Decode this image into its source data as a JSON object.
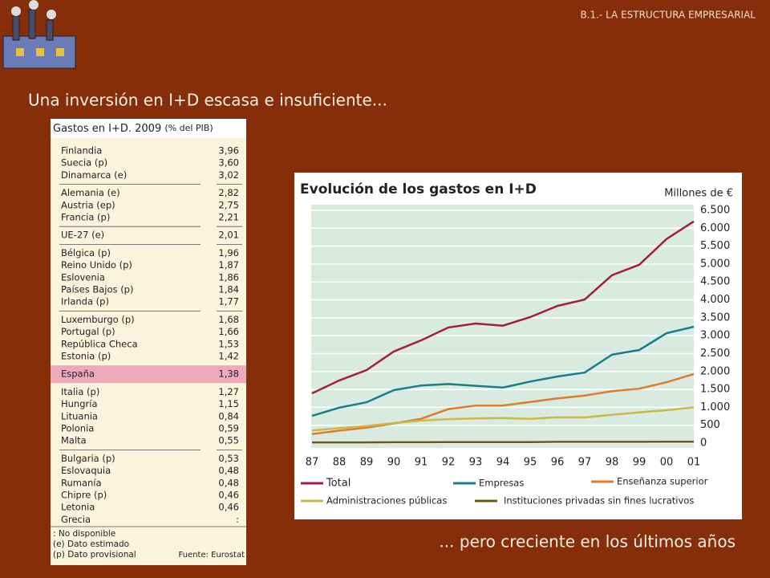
{
  "header": {
    "section": "B.1.- LA ESTRUCTURA EMPRESARIAL"
  },
  "heading": "Una inversión en I+D escasa e insuficiente...",
  "footer_text": "... pero creciente en los últimos años",
  "table": {
    "title": "Gastos en I+D. 2009",
    "unit": "(% del PIB)",
    "groups": [
      [
        [
          "Finlandia",
          "3,96"
        ],
        [
          "Suecia (p)",
          "3,60"
        ],
        [
          "Dinamarca (e)",
          "3,02"
        ]
      ],
      [
        [
          "Alemania (e)",
          "2,82"
        ],
        [
          "Austria (ep)",
          "2,75"
        ],
        [
          "Francia (p)",
          "2,21"
        ]
      ],
      [
        [
          "UE-27 (e)",
          "2,01"
        ]
      ],
      [
        [
          "Bélgica (p)",
          "1,96"
        ],
        [
          "Reino Unido (p)",
          "1,87"
        ],
        [
          "Eslovenia",
          "1,86"
        ],
        [
          "Países Bajos (p)",
          "1,84"
        ],
        [
          "Irlanda (p)",
          "1,77"
        ]
      ],
      [
        [
          "Luxemburgo (p)",
          "1,68"
        ],
        [
          "Portugal (p)",
          "1,66"
        ],
        [
          "República Checa",
          "1,53"
        ],
        [
          "Estonia (p)",
          "1,42"
        ]
      ],
      [
        [
          "España",
          "1,38"
        ]
      ],
      [
        [
          "Italia (p)",
          "1,27"
        ],
        [
          "Hungría",
          "1,15"
        ],
        [
          "Lituania",
          "0,84"
        ],
        [
          "Polonia",
          "0,59"
        ],
        [
          "Malta",
          "0,55"
        ]
      ],
      [
        [
          "Bulgaria (p)",
          "0,53"
        ],
        [
          "Eslovaquia",
          "0,48"
        ],
        [
          "Rumanía",
          "0,48"
        ],
        [
          "Chipre (p)",
          "0,46"
        ],
        [
          "Letonia",
          "0,46"
        ],
        [
          "Grecia",
          ":"
        ]
      ]
    ],
    "notes": [
      ": No disponible",
      "(e) Dato estimado",
      "(p) Dato provisional"
    ],
    "source": "Fuente: Eurostat"
  },
  "chart_data": {
    "type": "line",
    "title": "Evolución de los gastos en I+D",
    "unit_label": "Millones de €",
    "categories": [
      "87",
      "88",
      "89",
      "90",
      "91",
      "92",
      "93",
      "94",
      "95",
      "96",
      "97",
      "98",
      "99",
      "00",
      "01"
    ],
    "series": [
      {
        "name": "Total",
        "color": "#a31c46",
        "values": [
          1390,
          1750,
          2040,
          2560,
          2870,
          3230,
          3340,
          3280,
          3520,
          3830,
          4010,
          4690,
          4980,
          5700,
          6190
        ]
      },
      {
        "name": "Empresas",
        "color": "#1b7d87",
        "values": [
          760,
          990,
          1140,
          1480,
          1610,
          1650,
          1600,
          1550,
          1720,
          1860,
          1970,
          2470,
          2600,
          3070,
          3250
        ]
      },
      {
        "name": "Enseñanza superior",
        "color": "#e07b2a",
        "values": [
          250,
          350,
          430,
          550,
          680,
          950,
          1050,
          1050,
          1150,
          1250,
          1330,
          1450,
          1520,
          1700,
          1930
        ]
      },
      {
        "name": "Administraciones públicas",
        "color": "#c9b84c",
        "values": [
          350,
          420,
          480,
          560,
          630,
          670,
          690,
          700,
          680,
          720,
          720,
          790,
          860,
          920,
          1000
        ]
      },
      {
        "name": "Instituciones privadas sin fines lucrativos",
        "color": "#6b5a10",
        "values": [
          20,
          20,
          20,
          25,
          25,
          30,
          30,
          30,
          30,
          35,
          35,
          35,
          35,
          40,
          40
        ]
      }
    ],
    "ylim": [
      0,
      6500
    ],
    "yticks": [
      0,
      500,
      {
        "value": 1000,
        "label": "1.000"
      },
      {
        "value": 1500,
        "label": "1.500"
      },
      {
        "value": 2000,
        "label": "2.000"
      },
      {
        "value": 2500,
        "label": "2.500"
      },
      {
        "value": 3000,
        "label": "3.000"
      },
      {
        "value": 3500,
        "label": "3.500"
      },
      {
        "value": 4000,
        "label": "4.000"
      },
      {
        "value": 4500,
        "label": "4.500"
      },
      {
        "value": 5000,
        "label": "5.000"
      },
      {
        "value": 5500,
        "label": "5.500"
      },
      {
        "value": 6000,
        "label": "6.000"
      },
      {
        "value": 6500,
        "label": "6.500"
      }
    ],
    "grid": true
  }
}
